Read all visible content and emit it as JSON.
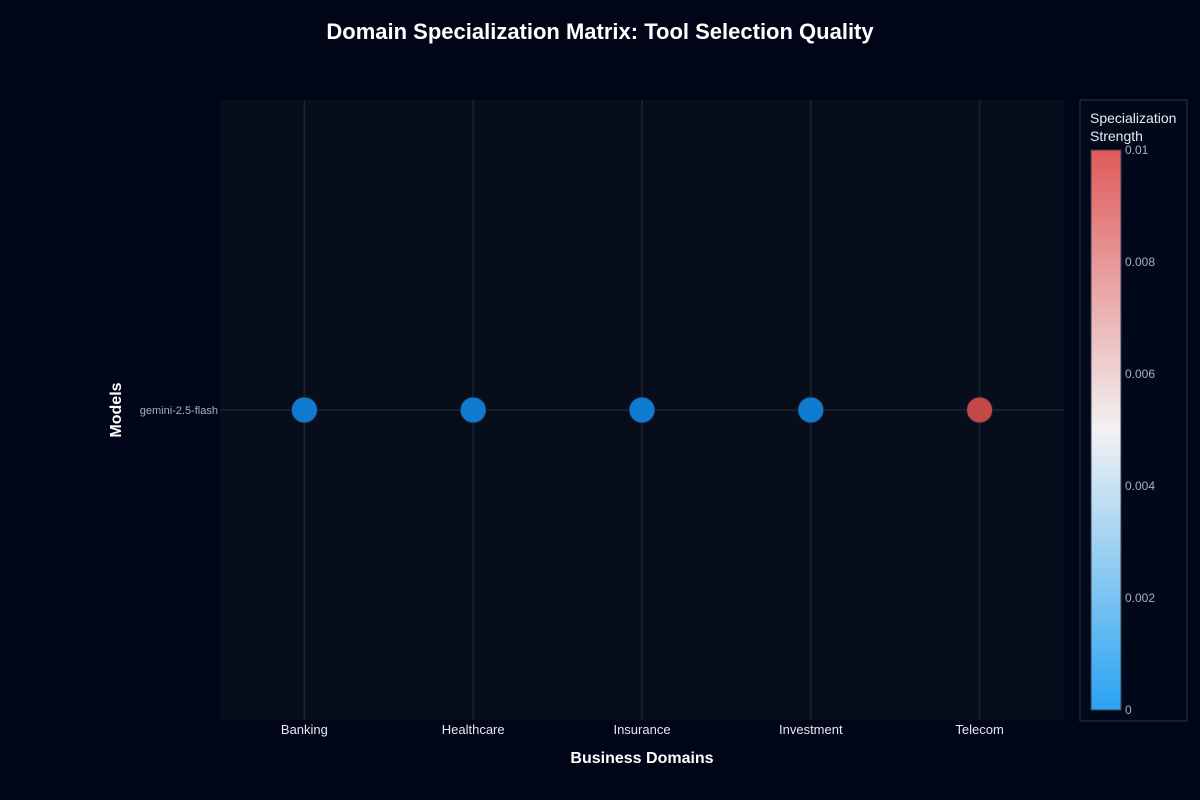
{
  "chart_data": {
    "type": "scatter",
    "title": "Domain Specialization Matrix: Tool Selection Quality",
    "xlabel": "Business Domains",
    "ylabel": "Models",
    "categories": [
      "Banking",
      "Healthcare",
      "Insurance",
      "Investment",
      "Telecom"
    ],
    "models": [
      "gemini-2.5-flash"
    ],
    "points": [
      {
        "model": "gemini-2.5-flash",
        "domain": "Banking",
        "value": 0
      },
      {
        "model": "gemini-2.5-flash",
        "domain": "Healthcare",
        "value": 0
      },
      {
        "model": "gemini-2.5-flash",
        "domain": "Insurance",
        "value": 0
      },
      {
        "model": "gemini-2.5-flash",
        "domain": "Investment",
        "value": 0
      },
      {
        "model": "gemini-2.5-flash",
        "domain": "Telecom",
        "value": 0.01
      }
    ],
    "colorbar": {
      "title": [
        "Specialization",
        "Strength"
      ],
      "range": [
        0,
        0.01
      ],
      "ticks": [
        "0",
        "0.002",
        "0.004",
        "0.006",
        "0.008",
        "0.01"
      ],
      "colors": [
        "#29a3f2",
        "#f2f2f2",
        "#e05a5a"
      ]
    },
    "point_colors": {
      "low": "#0f7bd0",
      "high": "#c44848"
    },
    "grid": true,
    "legend": "right"
  }
}
